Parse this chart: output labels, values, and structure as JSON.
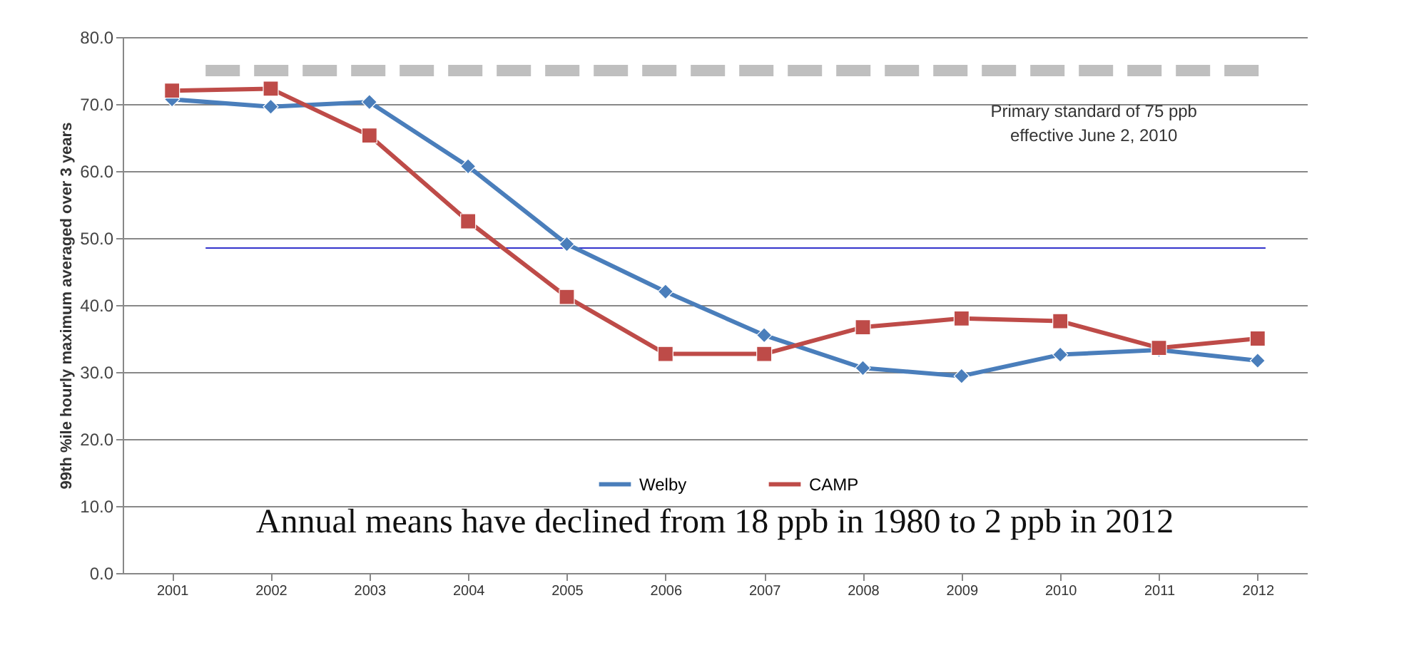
{
  "chart_data": {
    "type": "line",
    "ylabel": "99th %ile hourly maximum averaged over 3 years",
    "categories": [
      "2001",
      "2002",
      "2003",
      "2004",
      "2005",
      "2006",
      "2007",
      "2008",
      "2009",
      "2010",
      "2011",
      "2012"
    ],
    "series": [
      {
        "name": "Welby",
        "color": "#4a7ebb",
        "marker": "diamond",
        "values": [
          70.7,
          69.6,
          70.3,
          60.7,
          49.1,
          42.0,
          35.5,
          30.6,
          29.4,
          32.6,
          33.3,
          31.7
        ]
      },
      {
        "name": "CAMP",
        "color": "#be4b48",
        "marker": "square",
        "values": [
          72.0,
          72.3,
          65.3,
          52.5,
          41.2,
          32.7,
          32.7,
          36.7,
          38.0,
          37.6,
          33.6,
          35.0
        ]
      }
    ],
    "ylim": [
      0,
      80
    ],
    "yticks": [
      {
        "value": 0,
        "label": "0.0"
      },
      {
        "value": 10,
        "label": "10.0"
      },
      {
        "value": 20,
        "label": "20.0"
      },
      {
        "value": 30,
        "label": "30.0"
      },
      {
        "value": 40,
        "label": "40.0"
      },
      {
        "value": 50,
        "label": "50.0"
      },
      {
        "value": 60,
        "label": "60.0"
      },
      {
        "value": 70,
        "label": "70.0"
      },
      {
        "value": 80,
        "label": "80.0"
      }
    ],
    "ref_lines": [
      {
        "axis": "y",
        "value": 75,
        "label": "Primary standard of 75 ppb\neffective June 2, 2010",
        "color": "#bfbfbf",
        "line_style": "dashed"
      },
      {
        "axis": "y",
        "value": 48.5,
        "color": "#3333cc",
        "line_style": "solid"
      }
    ],
    "annotations": [
      "Annual means have declined from 18 ppb in 1980 to 2 ppb in 2012"
    ],
    "grid": "y",
    "legend": "bottom",
    "line_style": "solid"
  }
}
